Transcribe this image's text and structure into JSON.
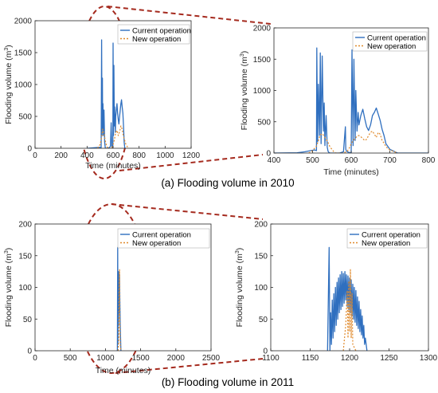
{
  "colors": {
    "current_series": "#2f6fbf",
    "new_series": "#e08a2c",
    "zoom_marker": "#a52a1e",
    "axis": "#262626"
  },
  "captions": {
    "top": "(a) Flooding volume in 2010",
    "bottom": "(b) Flooding volume in 2011"
  },
  "chart_data": [
    {
      "id": "p2010-full",
      "type": "line",
      "title": "",
      "xlabel": "Time (minutes)",
      "ylabel": "Flooding volume (m",
      "ylabel_sup": "3",
      "ylabel_close": ")",
      "xlim": [
        0,
        1200
      ],
      "ylim": [
        0,
        2000
      ],
      "xticks": [
        "0",
        "200",
        "400",
        "600",
        "800",
        "1000",
        "1200"
      ],
      "yticks": [
        "0",
        "500",
        "1000",
        "1500",
        "2000"
      ],
      "legend": {
        "position": "top-right"
      },
      "series": [
        {
          "name": "Current operation",
          "style": "solid",
          "x": [
            400,
            470,
            500,
            508,
            512,
            515,
            518,
            520,
            522,
            525,
            530,
            535,
            540,
            548,
            555,
            570,
            580,
            585,
            590,
            595,
            598,
            600,
            603,
            606,
            610,
            612,
            615,
            618,
            620,
            625,
            630,
            635,
            640,
            645,
            650,
            655,
            660,
            665,
            670,
            675,
            680,
            685,
            690,
            700
          ],
          "y": [
            0,
            10,
            15,
            0,
            1700,
            200,
            1100,
            300,
            700,
            200,
            600,
            100,
            5,
            0,
            0,
            10,
            30,
            400,
            20,
            5,
            0,
            1650,
            200,
            1300,
            350,
            650,
            420,
            250,
            500,
            600,
            700,
            550,
            450,
            380,
            500,
            600,
            700,
            760,
            650,
            550,
            350,
            100,
            0,
            0
          ]
        },
        {
          "name": "New operation",
          "style": "dotted",
          "x": [
            480,
            500,
            510,
            515,
            520,
            525,
            530,
            540,
            550,
            560,
            570,
            590,
            600,
            610,
            620,
            630,
            640,
            650,
            660,
            670,
            680,
            690,
            700,
            720
          ],
          "y": [
            0,
            60,
            150,
            220,
            300,
            270,
            230,
            120,
            40,
            0,
            0,
            0,
            60,
            130,
            250,
            280,
            200,
            260,
            350,
            300,
            180,
            120,
            50,
            0
          ]
        }
      ]
    },
    {
      "id": "p2010-zoom",
      "type": "line",
      "title": "",
      "xlabel": "Time (minutes)",
      "ylabel": "Flooding volume (m",
      "ylabel_sup": "3",
      "ylabel_close": ")",
      "xlim": [
        400,
        800
      ],
      "ylim": [
        0,
        2000
      ],
      "xticks": [
        "400",
        "500",
        "600",
        "700",
        "800"
      ],
      "yticks": [
        "0",
        "500",
        "1000",
        "1500",
        "2000"
      ],
      "legend": {
        "position": "top-right"
      },
      "series": [
        {
          "name": "Current operation",
          "style": "solid",
          "x": [
            400,
            460,
            480,
            500,
            505,
            510,
            511,
            513,
            515,
            518,
            520,
            522,
            525,
            528,
            530,
            532,
            535,
            538,
            540,
            542,
            545,
            550,
            560,
            570,
            580,
            585,
            586,
            588,
            590,
            595,
            600,
            602,
            605,
            607,
            610,
            612,
            615,
            618,
            620,
            625,
            630,
            635,
            640,
            645,
            650,
            655,
            660,
            665,
            670,
            675,
            680,
            685,
            690,
            700,
            720,
            800
          ],
          "y": [
            0,
            5,
            20,
            45,
            50,
            40,
            1680,
            180,
            1100,
            280,
            1600,
            150,
            1550,
            350,
            800,
            120,
            600,
            100,
            30,
            10,
            0,
            0,
            0,
            0,
            20,
            420,
            60,
            30,
            20,
            10,
            0,
            1650,
            120,
            1500,
            200,
            1000,
            350,
            650,
            450,
            600,
            700,
            550,
            420,
            360,
            450,
            600,
            650,
            720,
            620,
            520,
            380,
            280,
            150,
            60,
            0,
            0
          ]
        },
        {
          "name": "New operation",
          "style": "dotted",
          "x": [
            490,
            500,
            510,
            515,
            520,
            525,
            530,
            535,
            540,
            545,
            550,
            555,
            560,
            570,
            580,
            590,
            595,
            600,
            605,
            610,
            615,
            620,
            625,
            630,
            635,
            640,
            645,
            650,
            655,
            660,
            665,
            670,
            675,
            680,
            685,
            690,
            700,
            720
          ],
          "y": [
            0,
            40,
            110,
            200,
            290,
            310,
            270,
            220,
            170,
            100,
            60,
            20,
            0,
            0,
            0,
            30,
            80,
            150,
            200,
            230,
            270,
            280,
            260,
            230,
            200,
            220,
            280,
            330,
            350,
            300,
            250,
            330,
            300,
            200,
            160,
            100,
            50,
            0
          ]
        }
      ]
    },
    {
      "id": "p2011-full",
      "type": "line",
      "title": "",
      "xlabel": "Time (minutes)",
      "ylabel": "Flooding volume (m",
      "ylabel_sup": "3",
      "ylabel_close": ")",
      "xlim": [
        0,
        2500
      ],
      "ylim": [
        0,
        200
      ],
      "xticks": [
        "0",
        "500",
        "1000",
        "1500",
        "2000",
        "2500"
      ],
      "yticks": [
        "0",
        "50",
        "100",
        "150",
        "200"
      ],
      "legend": {
        "position": "top-right"
      },
      "series": [
        {
          "name": "Current operation",
          "style": "solid",
          "x": [
            1160,
            1170,
            1174,
            1178,
            1182,
            1186,
            1190,
            1195,
            1200,
            1205,
            1210,
            1215,
            1220,
            1230
          ],
          "y": [
            0,
            0,
            163,
            10,
            120,
            40,
            125,
            60,
            120,
            80,
            40,
            20,
            0,
            0
          ]
        },
        {
          "name": "New operation",
          "style": "dotted",
          "x": [
            1180,
            1190,
            1196,
            1200,
            1204,
            1210,
            1220
          ],
          "y": [
            0,
            20,
            100,
            128,
            60,
            10,
            0
          ]
        }
      ]
    },
    {
      "id": "p2011-zoom",
      "type": "line",
      "title": "",
      "xlabel": "",
      "ylabel": "Flooding volume (m",
      "ylabel_sup": "3",
      "ylabel_close": ")",
      "xlim": [
        1100,
        1300
      ],
      "ylim": [
        0,
        200
      ],
      "xticks": [
        "1100",
        "1150",
        "1200",
        "1250",
        "1300"
      ],
      "yticks": [
        "0",
        "50",
        "100",
        "150",
        "200"
      ],
      "legend": {
        "position": "top-right"
      },
      "series": [
        {
          "name": "Current operation",
          "style": "solid",
          "x": [
            1172,
            1174,
            1175,
            1176,
            1177,
            1178,
            1179,
            1180,
            1181,
            1182,
            1183,
            1184,
            1185,
            1186,
            1187,
            1188,
            1189,
            1190,
            1191,
            1192,
            1193,
            1194,
            1195,
            1196,
            1197,
            1198,
            1199,
            1200,
            1201,
            1202,
            1203,
            1204,
            1205,
            1206,
            1207,
            1208,
            1209,
            1210,
            1211,
            1212,
            1213,
            1214,
            1215,
            1216,
            1217,
            1218,
            1219,
            1220,
            1222
          ],
          "y": [
            0,
            163,
            0,
            60,
            10,
            80,
            20,
            90,
            30,
            100,
            40,
            108,
            50,
            115,
            60,
            120,
            65,
            125,
            70,
            122,
            75,
            125,
            80,
            120,
            70,
            118,
            65,
            115,
            60,
            112,
            55,
            105,
            50,
            100,
            45,
            95,
            40,
            85,
            35,
            78,
            30,
            65,
            25,
            55,
            20,
            40,
            10,
            20,
            0
          ]
        },
        {
          "name": "New operation",
          "style": "dotted",
          "x": [
            1192,
            1195,
            1197,
            1198,
            1199,
            1200,
            1201,
            1202,
            1203,
            1204,
            1206,
            1208
          ],
          "y": [
            0,
            40,
            95,
            20,
            110,
            30,
            128,
            20,
            90,
            10,
            5,
            0
          ]
        }
      ]
    }
  ]
}
